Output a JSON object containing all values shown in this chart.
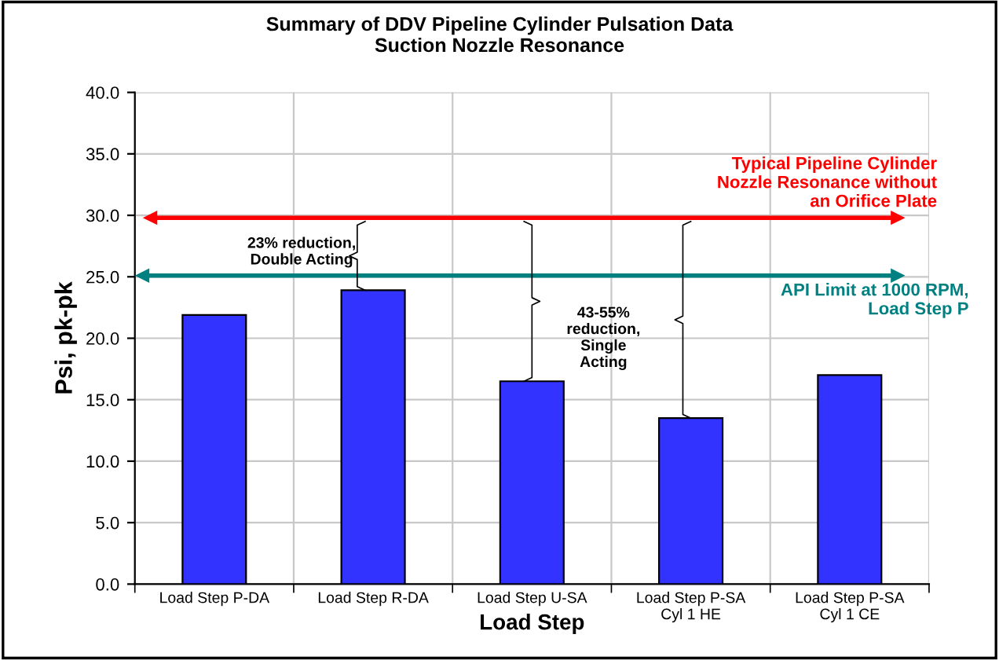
{
  "chart_data": {
    "type": "bar",
    "title": "Summary of DDV Pipeline Cylinder Pulsation Data\nSuction Nozzle Resonance",
    "xlabel": "Load Step",
    "ylabel": "Psi, pk-pk",
    "categories": [
      "Load Step P-DA",
      "Load Step R-DA",
      "Load Step U-SA",
      "Load Step P-SA\nCyl 1 HE",
      "Load Step P-SA\nCyl 1 CE"
    ],
    "values": [
      21.9,
      23.9,
      16.5,
      13.5,
      17.0
    ],
    "color": "#3333ff",
    "ylim": [
      0,
      40
    ],
    "yticks": [
      {
        "value": 0,
        "label": "0.0"
      },
      {
        "value": 5,
        "label": "5.0"
      },
      {
        "value": 10,
        "label": "10.0"
      },
      {
        "value": 15,
        "label": "15.0"
      },
      {
        "value": 20,
        "label": "20.0"
      },
      {
        "value": 25,
        "label": "25.0"
      },
      {
        "value": 30,
        "label": "30.0"
      },
      {
        "value": 35,
        "label": "35.0"
      },
      {
        "value": 40,
        "label": "40.0"
      }
    ],
    "grid": true,
    "ref_lines": [
      {
        "axis": "y",
        "value": 29.8,
        "label": "Typical Pipeline Cylinder\nNozzle Resonance without\nan Orifice Plate",
        "color": "#ff0000"
      },
      {
        "axis": "y",
        "value": 25.1,
        "label": "API Limit at 1000 RPM,\nLoad Step P",
        "color": "#008080"
      }
    ],
    "annotations": [
      {
        "text": "23% reduction,\nDouble Acting",
        "x": "Load Step R-DA",
        "y": 23.9
      },
      "43-55%\nreduction,\nSingle\nActing"
    ]
  }
}
